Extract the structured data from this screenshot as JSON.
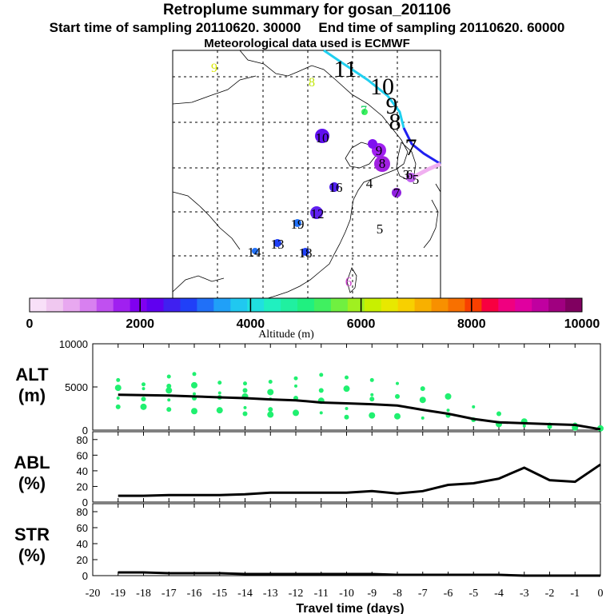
{
  "header": {
    "title": "Retroplume summary for gosan_201106",
    "start": "Start time of sampling 20110620. 30000",
    "end": "End time of sampling 20110620. 60000",
    "met": "Meteorological data used is ECMWF"
  },
  "map_labels": [
    {
      "text": "9",
      "color": "#d8e600",
      "size": "small"
    },
    {
      "text": "8",
      "color": "#bfe600",
      "size": "small"
    },
    {
      "text": "11",
      "color": "#000000",
      "size": "big"
    },
    {
      "text": "10",
      "color": "#000000",
      "size": "big"
    },
    {
      "text": "9",
      "color": "#000000",
      "size": "big"
    },
    {
      "text": "8",
      "color": "#000000",
      "size": "big"
    },
    {
      "text": "7",
      "color": "#00cc55",
      "size": "small"
    },
    {
      "text": "7",
      "color": "#000000",
      "size": "big"
    },
    {
      "text": "10",
      "color": "#000000",
      "size": "mid"
    },
    {
      "text": "9",
      "color": "#000000",
      "size": "mid"
    },
    {
      "text": "8",
      "color": "#000000",
      "size": "mid"
    },
    {
      "text": "6",
      "color": "#000000",
      "size": "mid"
    },
    {
      "text": "5",
      "color": "#000000",
      "size": "mid"
    },
    {
      "text": "3",
      "color": "#000000",
      "size": "mid"
    },
    {
      "text": "4",
      "color": "#000000",
      "size": "mid"
    },
    {
      "text": "7",
      "color": "#000000",
      "size": "mid"
    },
    {
      "text": "16",
      "color": "#000000",
      "size": "mid"
    },
    {
      "text": "12",
      "color": "#000000",
      "size": "mid"
    },
    {
      "text": "19",
      "color": "#000000",
      "size": "mid"
    },
    {
      "text": "13",
      "color": "#000000",
      "size": "mid"
    },
    {
      "text": "14",
      "color": "#000000",
      "size": "mid"
    },
    {
      "text": "18",
      "color": "#000000",
      "size": "mid"
    },
    {
      "text": "5",
      "color": "#000000",
      "size": "mid"
    },
    {
      "text": "6",
      "color": "#cc44cc",
      "size": "mid"
    }
  ],
  "colorbar": {
    "ticks": [
      "0",
      "2000",
      "4000",
      "6000",
      "8000",
      "10000"
    ],
    "label": "Altitude (m)",
    "colors": [
      "#f8e0f8",
      "#f0c8f0",
      "#e8a8f0",
      "#d880f0",
      "#c050f0",
      "#a020f0",
      "#8000f0",
      "#6000f0",
      "#4020f0",
      "#2040f8",
      "#2070f8",
      "#20a0f8",
      "#20c8f0",
      "#20e0e0",
      "#20f0c0",
      "#20f0a0",
      "#20f080",
      "#40f060",
      "#70f040",
      "#a0f020",
      "#c8f000",
      "#e8e800",
      "#f8d000",
      "#f8b000",
      "#f89000",
      "#f87000",
      "#f84000",
      "#f80040",
      "#f00080",
      "#e000a0",
      "#c000a0",
      "#a00080",
      "#800060"
    ]
  },
  "chart_data": [
    {
      "type": "line",
      "title": "ALT",
      "ylabel": "(m)",
      "ylim": [
        0,
        10000
      ],
      "yticks": [
        "0",
        "5000",
        "10000"
      ],
      "x": [
        -19,
        -18,
        -17,
        -16,
        -15,
        -14,
        -13,
        -12,
        -11,
        -10,
        -9,
        -8,
        -7,
        -6,
        -5,
        -4,
        -3,
        -2,
        -1,
        0
      ],
      "series": [
        {
          "name": "median altitude",
          "values": [
            4100,
            4050,
            4000,
            3900,
            3800,
            3700,
            3550,
            3450,
            3200,
            3100,
            3000,
            2850,
            2350,
            1900,
            1300,
            900,
            800,
            700,
            600,
            100
          ]
        }
      ],
      "scatter": [
        {
          "day": -19,
          "alts": [
            5800,
            4900,
            3700,
            2700
          ]
        },
        {
          "day": -18,
          "alts": [
            5300,
            4800,
            3600,
            2700
          ]
        },
        {
          "day": -17,
          "alts": [
            6200,
            5100,
            4600,
            3500,
            2400
          ]
        },
        {
          "day": -16,
          "alts": [
            6500,
            5200,
            4200,
            3700,
            2200
          ]
        },
        {
          "day": -15,
          "alts": [
            5500,
            4300,
            3800,
            2300
          ]
        },
        {
          "day": -14,
          "alts": [
            5400,
            4600,
            3900,
            2600,
            1900
          ]
        },
        {
          "day": -13,
          "alts": [
            5600,
            4400,
            3600,
            2400,
            1800
          ]
        },
        {
          "day": -12,
          "alts": [
            6000,
            5100,
            3700,
            2000
          ]
        },
        {
          "day": -11,
          "alts": [
            6400,
            4600,
            3400,
            2000
          ]
        },
        {
          "day": -10,
          "alts": [
            6100,
            4800,
            2500,
            1500
          ]
        },
        {
          "day": -9,
          "alts": [
            5800,
            4100,
            3600,
            1700
          ]
        },
        {
          "day": -8,
          "alts": [
            5400,
            3900,
            1600
          ]
        },
        {
          "day": -7,
          "alts": [
            4800,
            3500,
            1400
          ]
        },
        {
          "day": -6,
          "alts": [
            3900,
            2300,
            1700
          ]
        },
        {
          "day": -5,
          "alts": [
            2700,
            1200
          ]
        },
        {
          "day": -4,
          "alts": [
            1900,
            700
          ]
        },
        {
          "day": -3,
          "alts": [
            1000,
            500
          ]
        },
        {
          "day": -2,
          "alts": [
            700,
            400
          ]
        },
        {
          "day": -1,
          "alts": [
            600,
            300
          ]
        },
        {
          "day": 0,
          "alts": [
            200
          ]
        }
      ]
    },
    {
      "type": "line",
      "title": "ABL",
      "ylabel": "(%)",
      "ylim": [
        0,
        90
      ],
      "yticks": [
        "0",
        "20",
        "40",
        "60",
        "80"
      ],
      "x": [
        -19,
        -18,
        -17,
        -16,
        -15,
        -14,
        -13,
        -12,
        -11,
        -10,
        -9,
        -8,
        -7,
        -6,
        -5,
        -4,
        -3,
        -2,
        -1,
        0
      ],
      "series": [
        {
          "name": "ABL fraction",
          "values": [
            8,
            8,
            9,
            9,
            9,
            10,
            12,
            12,
            12,
            12,
            14,
            11,
            14,
            22,
            24,
            30,
            44,
            28,
            26,
            48
          ]
        }
      ]
    },
    {
      "type": "line",
      "title": "STR",
      "ylabel": "(%)",
      "ylim": [
        0,
        90
      ],
      "yticks": [
        "0",
        "20",
        "40",
        "60",
        "80"
      ],
      "xlabel": "Travel time (days)",
      "xticks": [
        "-20",
        "-19",
        "-18",
        "-17",
        "-16",
        "-15",
        "-14",
        "-13",
        "-12",
        "-11",
        "-10",
        "-9",
        "-8",
        "-7",
        "-6",
        "-5",
        "-4",
        "-3",
        "-2",
        "-1",
        "0"
      ],
      "x": [
        -19,
        -18,
        -17,
        -16,
        -15,
        -14,
        -13,
        -12,
        -11,
        -10,
        -9,
        -8,
        -7,
        -6,
        -5,
        -4,
        -3,
        -2,
        -1,
        0
      ],
      "series": [
        {
          "name": "stratosphere fraction",
          "values": [
            4,
            4,
            3,
            3,
            3,
            2,
            2,
            2,
            2,
            2,
            2,
            1,
            1,
            1,
            1,
            1,
            0,
            0,
            0,
            0
          ]
        }
      ]
    }
  ]
}
